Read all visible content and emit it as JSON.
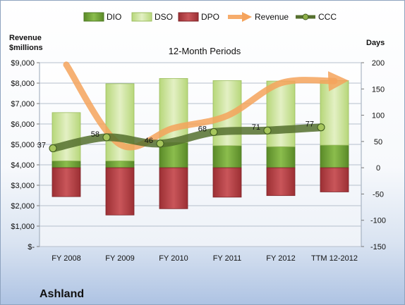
{
  "company": "Ashland",
  "chart_data": {
    "type": "bar",
    "title": "12-Month Periods",
    "ylabel_left": "Revenue\n$millions",
    "ylabel_right": "Days",
    "categories": [
      "FY 2008",
      "FY 2009",
      "FY 2010",
      "FY 2011",
      "FY 2012",
      "TTM 12-2012"
    ],
    "left_axis": {
      "ylim": [
        0,
        9000
      ],
      "ticks": [
        0,
        1000,
        2000,
        3000,
        4000,
        5000,
        6000,
        7000,
        8000,
        9000
      ],
      "tick_labels": [
        "$-",
        "$1,000",
        "$2,000",
        "$3,000",
        "$4,000",
        "$5,000",
        "$6,000",
        "$7,000",
        "$8,000",
        "$9,000"
      ]
    },
    "right_axis": {
      "ylim": [
        -150,
        200
      ],
      "ticks": [
        -150,
        -100,
        -50,
        0,
        50,
        100,
        150,
        200
      ],
      "tick_labels": [
        "-150",
        "-100",
        "-50",
        "0",
        "50",
        "100",
        "150",
        "200"
      ]
    },
    "series": [
      {
        "name": "DIO",
        "axis": "right",
        "kind": "stacked-bar",
        "values": [
          13,
          13,
          48,
          42,
          40,
          43
        ],
        "color": "#6f9a35"
      },
      {
        "name": "DSO",
        "axis": "right",
        "kind": "stacked-bar",
        "values": [
          92,
          147,
          122,
          124,
          125,
          123
        ],
        "color": "#c6de8d"
      },
      {
        "name": "DPO",
        "axis": "right",
        "kind": "negative-bar",
        "values": [
          -55,
          -90,
          -78,
          -56,
          -53,
          -46
        ],
        "color": "#b03a3e"
      },
      {
        "name": "Revenue",
        "axis": "left",
        "kind": "line",
        "values": [
          8900,
          5000,
          5800,
          6400,
          8000,
          8100
        ],
        "color": "#f5a35c"
      },
      {
        "name": "CCC",
        "axis": "right",
        "kind": "line",
        "values": [
          37,
          58,
          46,
          68,
          71,
          77
        ],
        "labels": [
          "37",
          "58",
          "46",
          "68",
          "71",
          "77"
        ],
        "color": "#55702e"
      }
    ],
    "grid": true,
    "legend": "top"
  }
}
